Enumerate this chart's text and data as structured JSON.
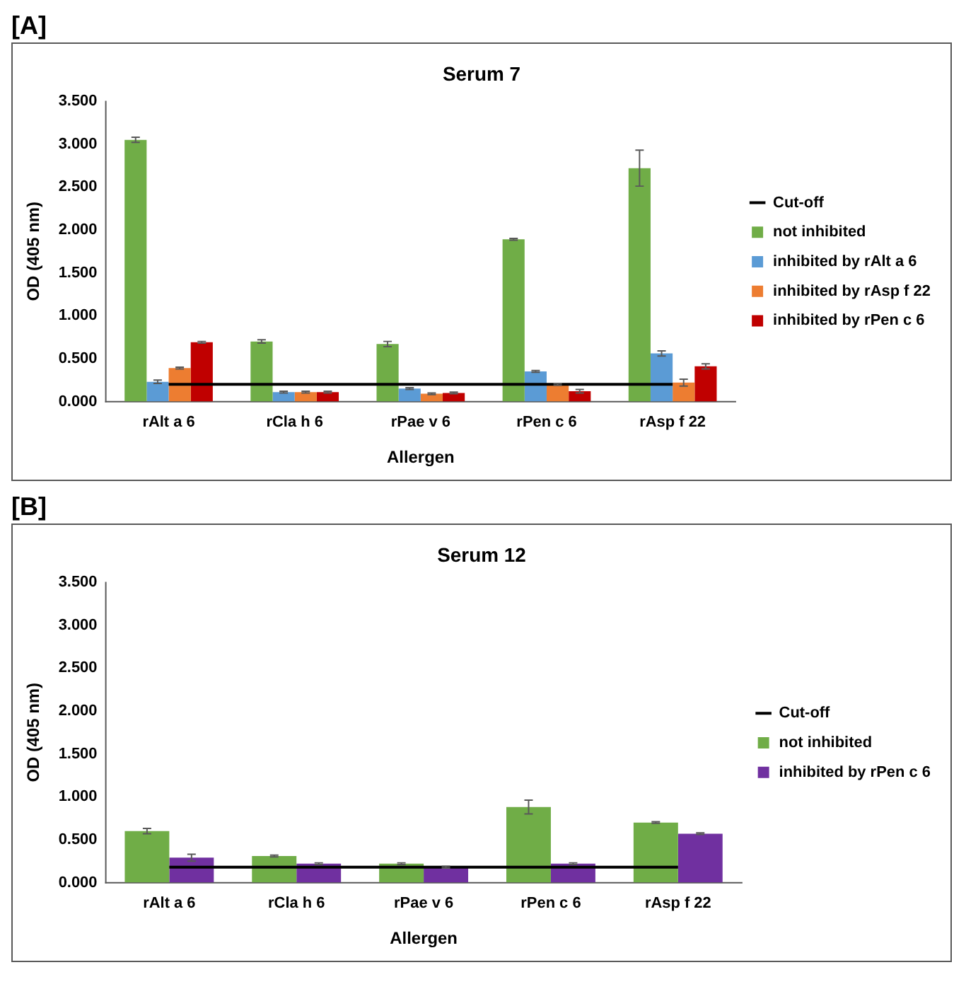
{
  "chart_data": [
    {
      "type": "bar",
      "title": "Serum 7",
      "xlabel": "Allergen",
      "ylabel": "OD (405 nm)",
      "annotations": [
        "[A]"
      ],
      "categories": [
        "rAlt a 6",
        "rCla h 6",
        "rPae v 6",
        "rPen c 6",
        "rAsp f 22"
      ],
      "series": [
        {
          "name": "not inhibited",
          "color": "#70ad47",
          "values": [
            3.05,
            0.7,
            0.67,
            1.89,
            2.72
          ],
          "errors": [
            0.03,
            0.02,
            0.03,
            0.01,
            0.21
          ]
        },
        {
          "name": "inhibited by rAlt a 6",
          "color": "#5b9bd5",
          "values": [
            0.23,
            0.11,
            0.15,
            0.35,
            0.56
          ],
          "errors": [
            0.02,
            0.01,
            0.01,
            0.01,
            0.03
          ]
        },
        {
          "name": "inhibited by rAsp f 22",
          "color": "#ed7d31",
          "values": [
            0.39,
            0.11,
            0.09,
            0.2,
            0.22
          ],
          "errors": [
            0.01,
            0.01,
            0.01,
            0.01,
            0.04
          ]
        },
        {
          "name": "inhibited by rPen c 6",
          "color": "#c00000",
          "values": [
            0.69,
            0.11,
            0.1,
            0.12,
            0.41
          ],
          "errors": [
            0.01,
            0.01,
            0.01,
            0.02,
            0.03
          ]
        },
        {
          "name": "Cut-off",
          "type": "line",
          "color": "#000000",
          "values": [
            0.2,
            0.2,
            0.2,
            0.2,
            0.2
          ]
        }
      ],
      "ylim": [
        0,
        3.5
      ],
      "yticks": [
        {
          "value": 0,
          "label": "0.000"
        },
        {
          "value": 0.5,
          "label": "0.500"
        },
        {
          "value": 1,
          "label": "1.000"
        },
        {
          "value": 1.5,
          "label": "1.500"
        },
        {
          "value": 2,
          "label": "2.000"
        },
        {
          "value": 2.5,
          "label": "2.500"
        },
        {
          "value": 3,
          "label": "3.000"
        },
        {
          "value": 3.5,
          "label": "3.500"
        }
      ],
      "grid": false,
      "legend": "right",
      "marker": "none"
    },
    {
      "type": "bar",
      "title": "Serum 12",
      "xlabel": "Allergen",
      "ylabel": "OD (405 nm)",
      "annotations": [
        "[B]"
      ],
      "categories": [
        "rAlt a 6",
        "rCla h 6",
        "rPae v 6",
        "rPen c 6",
        "rAsp f 22"
      ],
      "series": [
        {
          "name": "not inhibited",
          "color": "#70ad47",
          "values": [
            0.6,
            0.31,
            0.22,
            0.88,
            0.7
          ],
          "errors": [
            0.03,
            0.01,
            0.01,
            0.08,
            0.01
          ]
        },
        {
          "name": "inhibited by rPen c 6",
          "color": "#7030a0",
          "values": [
            0.29,
            0.22,
            0.18,
            0.22,
            0.57
          ],
          "errors": [
            0.04,
            0.01,
            0.01,
            0.01,
            0.01
          ]
        },
        {
          "name": "Cut-off",
          "type": "line",
          "color": "#000000",
          "values": [
            0.18,
            0.18,
            0.18,
            0.18,
            0.18
          ]
        }
      ],
      "ylim": [
        0,
        3.5
      ],
      "yticks": [
        {
          "value": 0,
          "label": "0.000"
        },
        {
          "value": 0.5,
          "label": "0.500"
        },
        {
          "value": 1,
          "label": "1.000"
        },
        {
          "value": 1.5,
          "label": "1.500"
        },
        {
          "value": 2,
          "label": "2.000"
        },
        {
          "value": 2.5,
          "label": "2.500"
        },
        {
          "value": 3,
          "label": "3.000"
        },
        {
          "value": 3.5,
          "label": "3.500"
        }
      ],
      "grid": false,
      "legend": "right",
      "marker": "none"
    }
  ]
}
